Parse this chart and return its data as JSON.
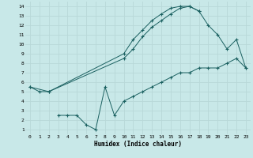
{
  "xlabel": "Humidex (Indice chaleur)",
  "bg_color": "#c8e8e8",
  "grid_color": "#b8d8d8",
  "line_color": "#1a6060",
  "xlim": [
    -0.5,
    23.5
  ],
  "ylim": [
    0.5,
    14.5
  ],
  "xticks": [
    0,
    1,
    2,
    3,
    4,
    5,
    6,
    7,
    8,
    9,
    10,
    11,
    12,
    13,
    14,
    15,
    16,
    17,
    18,
    19,
    20,
    21,
    22,
    23
  ],
  "yticks": [
    1,
    2,
    3,
    4,
    5,
    6,
    7,
    8,
    9,
    10,
    11,
    12,
    13,
    14
  ],
  "line1_x": [
    0,
    1,
    2,
    10,
    11,
    12,
    13,
    14,
    15,
    16,
    17,
    18
  ],
  "line1_y": [
    5.5,
    5.0,
    5.0,
    9.0,
    10.5,
    11.5,
    12.5,
    13.2,
    13.8,
    14.0,
    14.0,
    13.5
  ],
  "line2_x": [
    0,
    2,
    10,
    11,
    12,
    13,
    14,
    15,
    16,
    17,
    18,
    19,
    20,
    21,
    22,
    23
  ],
  "line2_y": [
    5.5,
    5.0,
    8.5,
    9.5,
    10.8,
    11.8,
    12.5,
    13.2,
    13.8,
    14.0,
    13.5,
    12.0,
    11.0,
    9.5,
    10.5,
    7.5
  ],
  "line3_x": [
    3,
    4,
    5,
    6,
    7,
    8,
    9,
    10,
    11,
    12,
    13,
    14,
    15,
    16,
    17,
    18,
    19,
    20,
    21,
    22,
    23
  ],
  "line3_y": [
    2.5,
    2.5,
    2.5,
    1.5,
    1.0,
    5.5,
    2.5,
    4.0,
    4.5,
    5.0,
    5.5,
    6.0,
    6.5,
    7.0,
    7.0,
    7.5,
    7.5,
    7.5,
    8.0,
    8.5,
    7.5
  ]
}
